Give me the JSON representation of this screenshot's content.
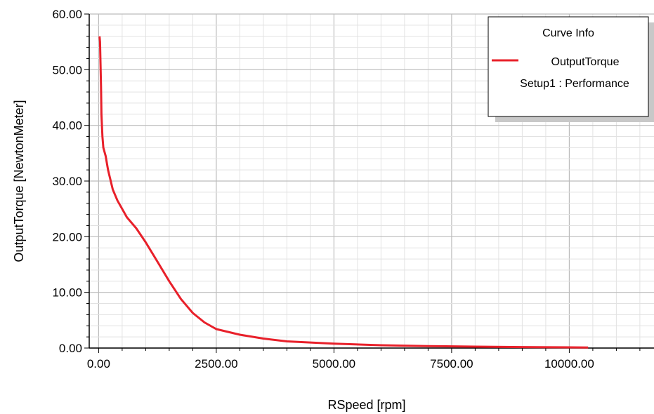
{
  "chart_data": {
    "type": "line",
    "title": "",
    "xlabel": "RSpeed [rpm]",
    "ylabel": "OutputTorque [NewtonMeter]",
    "xlim": [
      -200,
      11800
    ],
    "ylim": [
      0,
      60
    ],
    "x_ticks": [
      0,
      2500,
      5000,
      7500,
      10000
    ],
    "x_tick_labels": [
      "0.00",
      "2500.00",
      "5000.00",
      "7500.00",
      "10000.00"
    ],
    "y_ticks": [
      0,
      10,
      20,
      30,
      40,
      50,
      60
    ],
    "y_tick_labels": [
      "0.00",
      "10.00",
      "20.00",
      "30.00",
      "40.00",
      "50.00",
      "60.00"
    ],
    "grid": true,
    "legend": {
      "title": "Curve Info",
      "position": "top-right",
      "entries": [
        {
          "label": "OutputTorque",
          "sublabel": "Setup1 : Performance",
          "color": "#e8202a"
        }
      ]
    },
    "series": [
      {
        "name": "OutputTorque",
        "color": "#e8202a",
        "x": [
          20,
          30,
          40,
          50,
          60,
          80,
          100,
          150,
          200,
          300,
          400,
          500,
          600,
          800,
          1000,
          1250,
          1500,
          1750,
          2000,
          2250,
          2500,
          3000,
          3500,
          4000,
          5000,
          6000,
          7000,
          8000,
          9000,
          10000,
          10400
        ],
        "y": [
          56.0,
          55.0,
          51.0,
          47.0,
          42.0,
          38.0,
          36.0,
          34.5,
          32.0,
          28.5,
          26.5,
          25.0,
          23.5,
          21.5,
          19.0,
          15.5,
          12.0,
          8.8,
          6.3,
          4.6,
          3.4,
          2.4,
          1.7,
          1.2,
          0.8,
          0.5,
          0.35,
          0.25,
          0.18,
          0.12,
          0.1
        ]
      }
    ]
  }
}
